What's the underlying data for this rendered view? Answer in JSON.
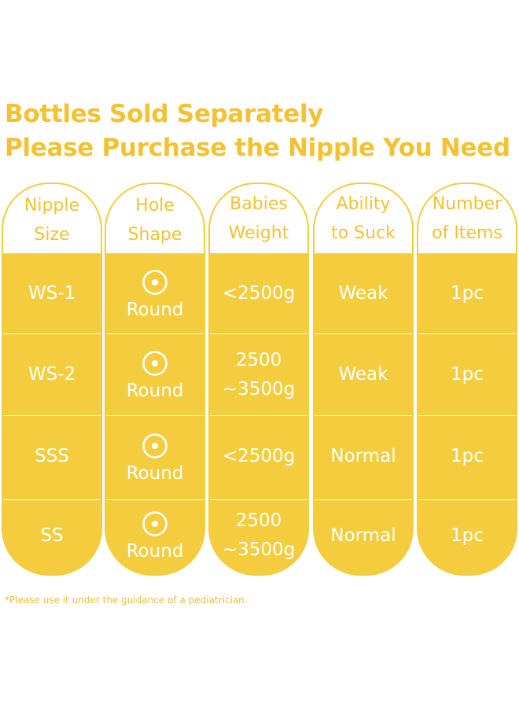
{
  "heading": {
    "line1": "Bottles Sold Separately",
    "line2": "Please Purchase the Nipple You Need"
  },
  "columns": [
    {
      "head": [
        "Nipple",
        "Size"
      ]
    },
    {
      "head": [
        "Hole",
        "Shape"
      ]
    },
    {
      "head": [
        "Babies",
        "Weight"
      ]
    },
    {
      "head": [
        "Ability",
        "to Suck"
      ]
    },
    {
      "head": [
        "Number",
        "of Items"
      ]
    }
  ],
  "rows": [
    {
      "size": "WS-1",
      "shape": "Round",
      "weight": [
        "<2500g"
      ],
      "suck": "Weak",
      "items": "1pc"
    },
    {
      "size": "WS-2",
      "shape": "Round",
      "weight": [
        "2500",
        "~3500g"
      ],
      "suck": "Weak",
      "items": "1pc"
    },
    {
      "size": "SSS",
      "shape": "Round",
      "weight": [
        "<2500g"
      ],
      "suck": "Normal",
      "items": "1pc"
    },
    {
      "size": "SS",
      "shape": "Round",
      "weight": [
        "2500",
        "~3500g"
      ],
      "suck": "Normal",
      "items": "1pc"
    }
  ],
  "icons": {
    "hole": "round-hole-icon"
  },
  "colors": {
    "accent": "#F4CD3F",
    "heading": "#F2C233",
    "text_on_accent": "#FFFFFF"
  },
  "footnote": "*Please use it under the guidance of a pediatrician."
}
